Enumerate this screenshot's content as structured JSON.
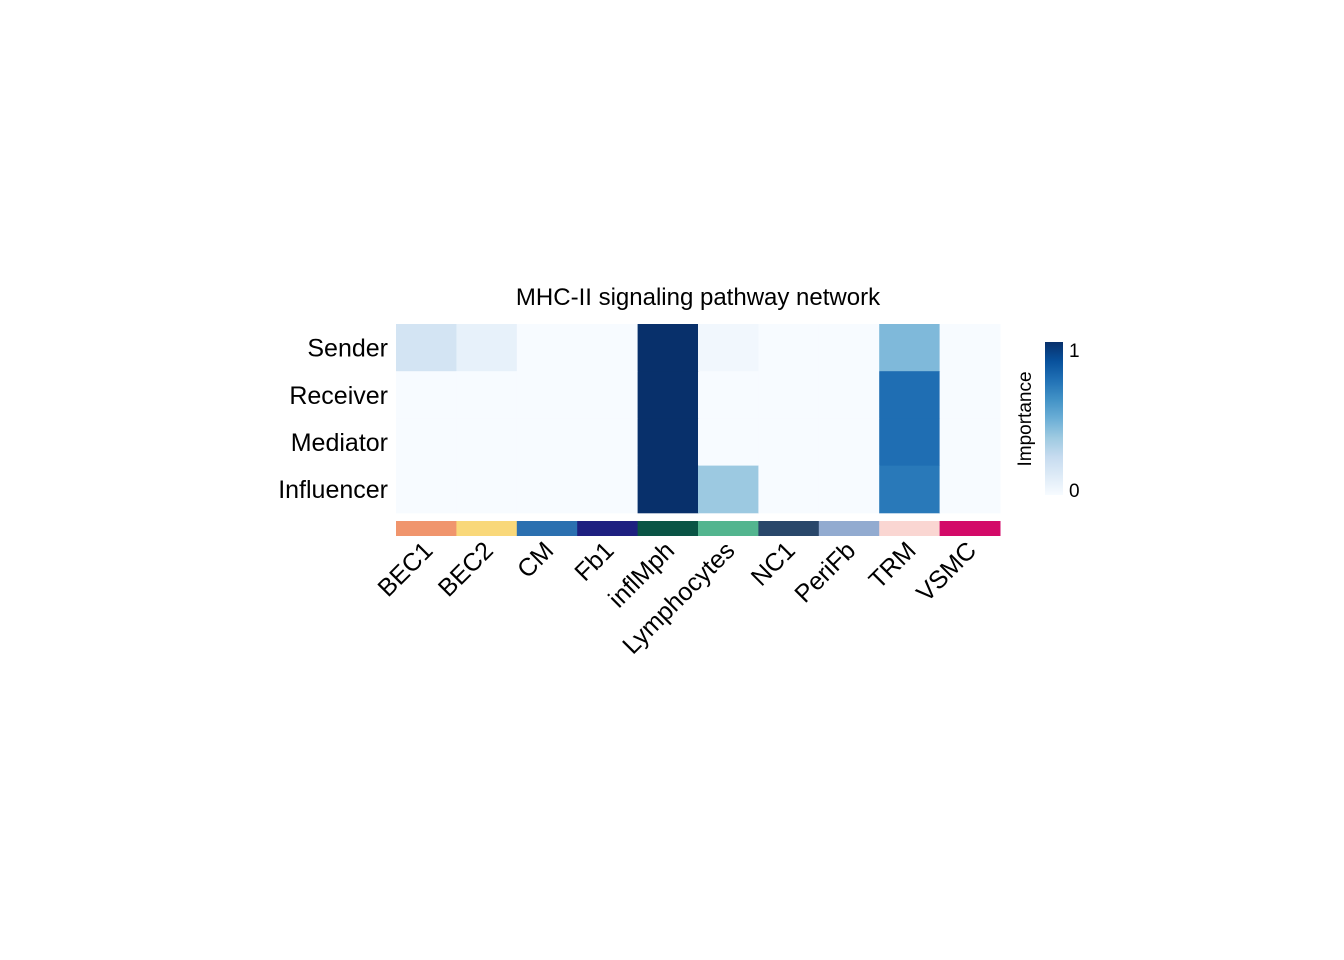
{
  "chart_data": {
    "type": "heatmap",
    "title": "MHC-II signaling pathway network",
    "rows": [
      "Sender",
      "Receiver",
      "Mediator",
      "Influencer"
    ],
    "columns": [
      "BEC1",
      "BEC2",
      "CM",
      "Fb1",
      "inflMph",
      "Lymphocytes",
      "NC1",
      "PeriFb",
      "TRM",
      "VSMC"
    ],
    "values": [
      [
        0.18,
        0.08,
        0.0,
        0.0,
        1.0,
        0.03,
        0.0,
        0.0,
        0.45,
        0.0
      ],
      [
        0.0,
        0.0,
        0.0,
        0.0,
        1.0,
        0.0,
        0.0,
        0.0,
        0.76,
        0.0
      ],
      [
        0.0,
        0.0,
        0.0,
        0.0,
        1.0,
        0.0,
        0.0,
        0.0,
        0.76,
        0.0
      ],
      [
        0.0,
        0.0,
        0.0,
        0.0,
        1.0,
        0.38,
        0.0,
        0.0,
        0.72,
        0.0
      ]
    ],
    "column_colors": [
      "#F0956D",
      "#F9D87A",
      "#2B70B0",
      "#1E2080",
      "#0A5445",
      "#53B58F",
      "#29476A",
      "#92ABD0",
      "#FAD6D2",
      "#D30A68"
    ],
    "legend": {
      "title": "Importance",
      "min_label": "0",
      "max_label": "1",
      "range": [
        0,
        1
      ],
      "placement": "right",
      "colormap": [
        "#F7FBFF",
        "#DEEBF7",
        "#C6DBEF",
        "#9ECAE1",
        "#6BAED6",
        "#4292C6",
        "#2171B5",
        "#08519C",
        "#08306B"
      ]
    }
  }
}
